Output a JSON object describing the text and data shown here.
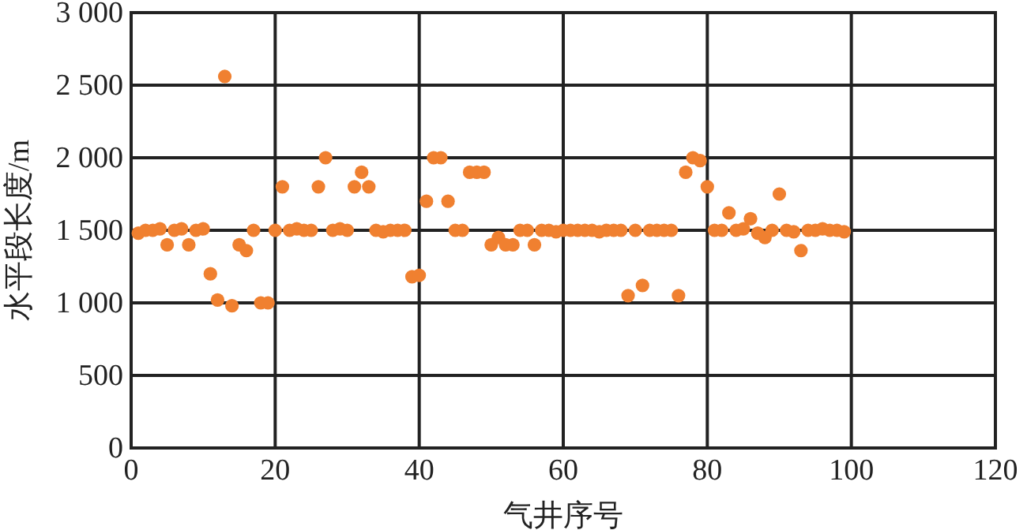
{
  "chart_data": {
    "type": "scatter",
    "xlabel": "气井序号",
    "ylabel": "水平段长度/m",
    "x": [
      1,
      2,
      3,
      4,
      5,
      6,
      7,
      8,
      9,
      10,
      11,
      12,
      13,
      14,
      15,
      16,
      17,
      18,
      19,
      20,
      21,
      22,
      23,
      24,
      25,
      26,
      27,
      28,
      29,
      30,
      31,
      32,
      33,
      34,
      35,
      36,
      37,
      38,
      39,
      40,
      41,
      42,
      43,
      44,
      45,
      46,
      47,
      48,
      49,
      50,
      51,
      52,
      53,
      54,
      55,
      56,
      57,
      58,
      59,
      60,
      61,
      62,
      63,
      64,
      65,
      66,
      67,
      68,
      69,
      70,
      71,
      72,
      73,
      74,
      75,
      76,
      77,
      78,
      79,
      80,
      81,
      82,
      83,
      84,
      85,
      86,
      87,
      88,
      89,
      90,
      91,
      92,
      93,
      94,
      95,
      96,
      97,
      98,
      99
    ],
    "series": [
      {
        "color": "#f08030",
        "values": [
          1480,
          1500,
          1500,
          1510,
          1400,
          1500,
          1510,
          1400,
          1500,
          1510,
          1200,
          1020,
          2560,
          980,
          1400,
          1360,
          1500,
          1000,
          1000,
          1500,
          1800,
          1500,
          1510,
          1500,
          1500,
          1800,
          2000,
          1500,
          1510,
          1500,
          1800,
          1900,
          1800,
          1500,
          1490,
          1500,
          1500,
          1500,
          1180,
          1190,
          1700,
          2000,
          2000,
          1700,
          1500,
          1500,
          1900,
          1900,
          1900,
          1400,
          1450,
          1400,
          1400,
          1500,
          1500,
          1400,
          1500,
          1500,
          1490,
          1500,
          1500,
          1500,
          1500,
          1500,
          1490,
          1500,
          1500,
          1500,
          1050,
          1500,
          1120,
          1500,
          1500,
          1500,
          1500,
          1050,
          1900,
          2000,
          1980,
          1800,
          1500,
          1500,
          1620,
          1500,
          1510,
          1580,
          1480,
          1450,
          1500,
          1750,
          1500,
          1490,
          1360,
          1500,
          1500,
          1510,
          1500,
          1500,
          1490
        ]
      }
    ],
    "xlim": [
      0,
      120
    ],
    "xticks": [
      0,
      20,
      40,
      60,
      80,
      100,
      120
    ],
    "ylim": [
      0,
      3000
    ],
    "yticks": [
      0,
      500,
      {
        "value": 1000,
        "label": "1 000"
      },
      {
        "value": 1500,
        "label": "1 500"
      },
      {
        "value": 2000,
        "label": "2 000"
      },
      {
        "value": 2500,
        "label": "2 500"
      },
      {
        "value": 3000,
        "label": "3 000"
      }
    ],
    "grid": true,
    "marker": "circle"
  }
}
